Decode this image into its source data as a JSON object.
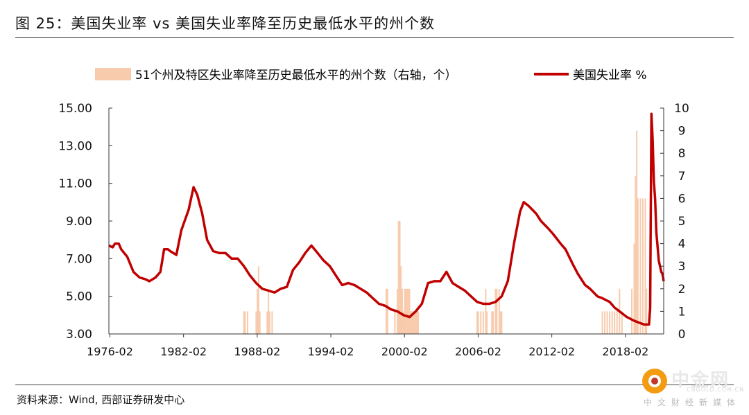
{
  "header": {
    "title": "图 25：美国失业率 vs 美国失业率降至历史最低水平的州个数"
  },
  "footer": {
    "source": "资料来源：Wind, 西部证券研发中心"
  },
  "watermark": {
    "name": "中金网",
    "url": "CNGOLD.COM.CN",
    "tagline": "中文财经新媒体"
  },
  "colors": {
    "line": "#c00000",
    "bar": "#f8cbad",
    "axis": "#333333"
  },
  "chart_data": {
    "type": "bar",
    "title": "",
    "legend": {
      "placement": "top",
      "bar_label": "51个州及特区失业率降至历史最低水平的州个数（右轴，个）",
      "line_label": "美国失业率 %"
    },
    "x_ticks": [
      "1976-02",
      "1982-02",
      "1988-02",
      "1994-02",
      "2000-02",
      "2006-02",
      "2012-02",
      "2018-02"
    ],
    "x_range": [
      1976.0,
      2021.2
    ],
    "y_left": {
      "range": [
        3.0,
        15.0
      ],
      "ticks": [
        "3.00",
        "5.00",
        "7.00",
        "9.00",
        "11.00",
        "13.00",
        "15.00"
      ]
    },
    "y_right": {
      "range": [
        0,
        10
      ],
      "ticks": [
        "0",
        "1",
        "2",
        "3",
        "4",
        "5",
        "6",
        "7",
        "8",
        "9",
        "10"
      ]
    },
    "series": [
      {
        "name": "51个州及特区失业率降至历史最低水平的州个数（右轴，个）",
        "kind": "bar",
        "axis": "right",
        "points": [
          [
            1987.0,
            1
          ],
          [
            1987.1,
            1
          ],
          [
            1987.3,
            1
          ],
          [
            1988.0,
            1
          ],
          [
            1988.1,
            2
          ],
          [
            1988.2,
            3
          ],
          [
            1988.3,
            1
          ],
          [
            1988.9,
            1
          ],
          [
            1989.0,
            2
          ],
          [
            1989.1,
            1
          ],
          [
            1989.3,
            1
          ],
          [
            1998.6,
            2
          ],
          [
            1998.7,
            2
          ],
          [
            1999.3,
            1
          ],
          [
            1999.5,
            2
          ],
          [
            1999.6,
            5
          ],
          [
            1999.7,
            5
          ],
          [
            1999.8,
            3
          ],
          [
            1999.9,
            2
          ],
          [
            2000.0,
            1
          ],
          [
            2000.1,
            2
          ],
          [
            2000.2,
            2
          ],
          [
            2000.3,
            2
          ],
          [
            2000.4,
            2
          ],
          [
            2000.5,
            2
          ],
          [
            2000.6,
            1
          ],
          [
            2000.7,
            1
          ],
          [
            2000.8,
            1
          ],
          [
            2000.9,
            1
          ],
          [
            2001.0,
            1
          ],
          [
            2001.1,
            1
          ],
          [
            2001.2,
            1
          ],
          [
            2006.0,
            1
          ],
          [
            2006.1,
            1
          ],
          [
            2006.3,
            1
          ],
          [
            2006.5,
            1
          ],
          [
            2006.7,
            2
          ],
          [
            2006.8,
            1
          ],
          [
            2007.2,
            1
          ],
          [
            2007.3,
            1
          ],
          [
            2007.5,
            2
          ],
          [
            2007.6,
            2
          ],
          [
            2007.8,
            2
          ],
          [
            2007.9,
            1
          ],
          [
            2008.0,
            1
          ],
          [
            2016.2,
            1
          ],
          [
            2016.4,
            1
          ],
          [
            2016.6,
            1
          ],
          [
            2016.8,
            1
          ],
          [
            2017.0,
            1
          ],
          [
            2017.2,
            1
          ],
          [
            2017.4,
            1
          ],
          [
            2017.6,
            2
          ],
          [
            2017.8,
            1
          ],
          [
            2018.6,
            2
          ],
          [
            2018.8,
            4
          ],
          [
            2018.9,
            7
          ],
          [
            2019.0,
            9
          ],
          [
            2019.1,
            6
          ],
          [
            2019.3,
            6
          ],
          [
            2019.5,
            6
          ],
          [
            2019.7,
            6
          ],
          [
            2019.8,
            2
          ]
        ]
      },
      {
        "name": "美国失业率 %",
        "kind": "line",
        "axis": "left",
        "points": [
          [
            1976.0,
            7.7
          ],
          [
            1976.3,
            7.6
          ],
          [
            1976.5,
            7.8
          ],
          [
            1976.8,
            7.8
          ],
          [
            1977.0,
            7.5
          ],
          [
            1977.5,
            7.1
          ],
          [
            1978.0,
            6.3
          ],
          [
            1978.5,
            6.0
          ],
          [
            1979.0,
            5.9
          ],
          [
            1979.3,
            5.8
          ],
          [
            1979.8,
            6.0
          ],
          [
            1980.2,
            6.3
          ],
          [
            1980.5,
            7.5
          ],
          [
            1980.8,
            7.5
          ],
          [
            1981.0,
            7.4
          ],
          [
            1981.5,
            7.2
          ],
          [
            1981.9,
            8.5
          ],
          [
            1982.5,
            9.6
          ],
          [
            1982.9,
            10.8
          ],
          [
            1983.2,
            10.4
          ],
          [
            1983.6,
            9.4
          ],
          [
            1984.0,
            8.0
          ],
          [
            1984.5,
            7.4
          ],
          [
            1985.0,
            7.3
          ],
          [
            1985.5,
            7.3
          ],
          [
            1986.0,
            7.0
          ],
          [
            1986.5,
            7.0
          ],
          [
            1987.0,
            6.6
          ],
          [
            1987.5,
            6.1
          ],
          [
            1988.0,
            5.7
          ],
          [
            1988.5,
            5.4
          ],
          [
            1989.0,
            5.3
          ],
          [
            1989.5,
            5.2
          ],
          [
            1990.0,
            5.4
          ],
          [
            1990.5,
            5.5
          ],
          [
            1991.0,
            6.4
          ],
          [
            1991.5,
            6.8
          ],
          [
            1992.0,
            7.3
          ],
          [
            1992.5,
            7.7
          ],
          [
            1993.0,
            7.3
          ],
          [
            1993.5,
            6.9
          ],
          [
            1994.0,
            6.6
          ],
          [
            1994.5,
            6.1
          ],
          [
            1995.0,
            5.6
          ],
          [
            1995.5,
            5.7
          ],
          [
            1996.0,
            5.6
          ],
          [
            1996.5,
            5.4
          ],
          [
            1997.0,
            5.2
          ],
          [
            1997.5,
            4.9
          ],
          [
            1998.0,
            4.6
          ],
          [
            1998.5,
            4.5
          ],
          [
            1999.0,
            4.3
          ],
          [
            1999.5,
            4.2
          ],
          [
            2000.0,
            4.0
          ],
          [
            2000.5,
            3.9
          ],
          [
            2001.0,
            4.2
          ],
          [
            2001.5,
            4.6
          ],
          [
            2002.0,
            5.7
          ],
          [
            2002.5,
            5.8
          ],
          [
            2003.0,
            5.8
          ],
          [
            2003.5,
            6.3
          ],
          [
            2004.0,
            5.7
          ],
          [
            2004.5,
            5.5
          ],
          [
            2005.0,
            5.3
          ],
          [
            2005.5,
            5.0
          ],
          [
            2006.0,
            4.7
          ],
          [
            2006.5,
            4.6
          ],
          [
            2007.0,
            4.6
          ],
          [
            2007.5,
            4.7
          ],
          [
            2008.0,
            5.0
          ],
          [
            2008.5,
            5.8
          ],
          [
            2009.0,
            7.8
          ],
          [
            2009.5,
            9.5
          ],
          [
            2009.8,
            10.0
          ],
          [
            2010.2,
            9.8
          ],
          [
            2010.8,
            9.4
          ],
          [
            2011.2,
            9.0
          ],
          [
            2011.8,
            8.6
          ],
          [
            2012.2,
            8.3
          ],
          [
            2012.8,
            7.8
          ],
          [
            2013.2,
            7.5
          ],
          [
            2013.8,
            6.7
          ],
          [
            2014.2,
            6.2
          ],
          [
            2014.8,
            5.6
          ],
          [
            2015.2,
            5.4
          ],
          [
            2015.8,
            5.0
          ],
          [
            2016.2,
            4.9
          ],
          [
            2016.8,
            4.7
          ],
          [
            2017.2,
            4.4
          ],
          [
            2017.8,
            4.1
          ],
          [
            2018.2,
            3.9
          ],
          [
            2018.8,
            3.7
          ],
          [
            2019.2,
            3.6
          ],
          [
            2019.6,
            3.5
          ],
          [
            2020.0,
            3.5
          ],
          [
            2020.1,
            4.4
          ],
          [
            2020.2,
            14.7
          ],
          [
            2020.3,
            13.3
          ],
          [
            2020.4,
            11.1
          ],
          [
            2020.5,
            10.2
          ],
          [
            2020.6,
            8.4
          ],
          [
            2020.8,
            6.9
          ],
          [
            2021.0,
            6.3
          ],
          [
            2021.1,
            6.2
          ],
          [
            2021.2,
            5.8
          ]
        ]
      }
    ]
  }
}
